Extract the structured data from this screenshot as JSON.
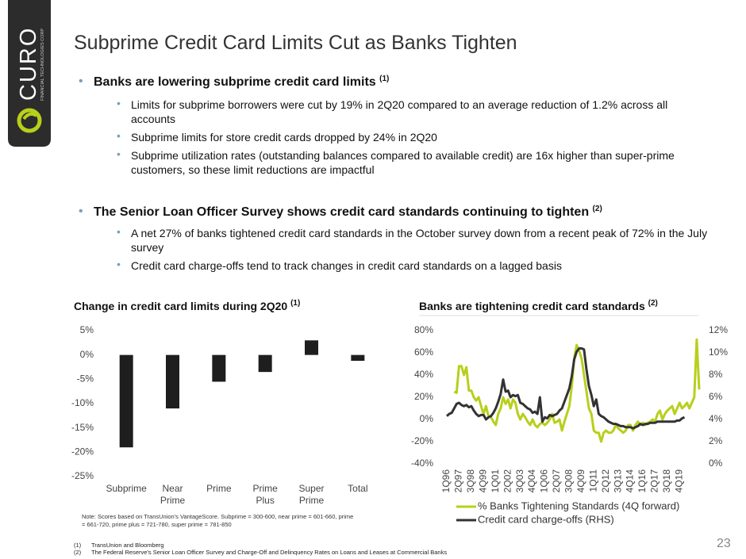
{
  "slide": {
    "logo": {
      "name": "CURO",
      "tagline": "FINANCIAL TECHNOLOGIES CORP"
    },
    "title": "Subprime Credit Card Limits Cut as Banks Tighten",
    "bullets": [
      {
        "text": "Banks are lowering subprime credit card limits",
        "ref": "(1)",
        "sub": [
          "Limits for subprime borrowers were cut by 19% in 2Q20 compared to an average reduction of 1.2% across all accounts",
          "Subprime limits for store credit cards dropped by 24% in 2Q20",
          "Subprime utilization rates (outstanding balances compared to available credit) are 16x higher than super-prime customers, so these limit reductions are impactful"
        ]
      },
      {
        "text": "The Senior Loan Officer Survey shows credit card standards continuing to tighten",
        "ref": "(2)",
        "sub": [
          "A net 27% of banks tightened credit card standards in the October survey down from a recent peak of 72% in the July survey",
          "Credit card charge-offs tend to track changes in credit card standards on a lagged basis"
        ]
      }
    ],
    "note": "Note: Scores based on TransUnion's VantageScore. Subprime = 300-600, near prime = 601-660, prime = 661-720, prime plus = 721-780, super prime = 781-850",
    "footnotes": [
      {
        "mark": "(1)",
        "text": "TransUnion and Bloomberg"
      },
      {
        "mark": "(2)",
        "text": "The Federal Reserve's Senior Loan Officer Survey and Charge-Off and Delinquency Rates on Loans and Leases at Commercial Banks"
      }
    ],
    "page": "23"
  },
  "chart_data": [
    {
      "type": "bar",
      "title": "Change in credit card limits during 2Q20",
      "title_ref": "(1)",
      "categories": [
        "Subprime",
        "Near Prime",
        "Prime",
        "Prime Plus",
        "Super Prime",
        "Total"
      ],
      "values": [
        -19,
        -11,
        -5.5,
        -3.5,
        3,
        -1.2
      ],
      "color": "#1e1e1e",
      "ylim": [
        -25,
        5
      ],
      "yticks": [
        {
          "value": 5,
          "label": "5%"
        },
        {
          "value": 0,
          "label": "0%"
        },
        {
          "value": -5,
          "label": "-5%"
        },
        {
          "value": -10,
          "label": "-10%"
        },
        {
          "value": -15,
          "label": "-15%"
        },
        {
          "value": -20,
          "label": "-20%"
        },
        {
          "value": -25,
          "label": "-25%"
        }
      ],
      "grid": false
    },
    {
      "type": "line",
      "title": "Banks are tightening credit card standards",
      "title_ref": "(2)",
      "categories": [
        "1Q96",
        null,
        null,
        null,
        null,
        "2Q97",
        null,
        null,
        null,
        null,
        "3Q98",
        null,
        null,
        null,
        null,
        "4Q99",
        null,
        null,
        null,
        null,
        "1Q01",
        null,
        null,
        null,
        null,
        "2Q02",
        null,
        null,
        null,
        null,
        "3Q03",
        null,
        null,
        null,
        null,
        "4Q04",
        null,
        null,
        null,
        null,
        "1Q06",
        null,
        null,
        null,
        null,
        "2Q07",
        null,
        null,
        null,
        null,
        "3Q08",
        null,
        null,
        null,
        null,
        "4Q09",
        null,
        null,
        null,
        null,
        "1Q11",
        null,
        null,
        null,
        null,
        "2Q12",
        null,
        null,
        null,
        null,
        "3Q13",
        null,
        null,
        null,
        null,
        "4Q14",
        null,
        null,
        null,
        null,
        "1Q16",
        null,
        null,
        null,
        null,
        "2Q17",
        null,
        null,
        null,
        null,
        "3Q18",
        null,
        null,
        null,
        null,
        "4Q19",
        null,
        null,
        null,
        null,
        null,
        null,
        null,
        null
      ],
      "series": [
        {
          "name": "% Banks Tightening Standards (4Q forward)",
          "color": "#b8cf1c",
          "axis": "y",
          "values": [
            null,
            null,
            null,
            25,
            24,
            48,
            48,
            40,
            47,
            26,
            26,
            20,
            17,
            20,
            12,
            5,
            12,
            3,
            2,
            -2,
            -5,
            5,
            10,
            20,
            14,
            18,
            10,
            18,
            15,
            5,
            0,
            5,
            2,
            -2,
            -5,
            0,
            -5,
            -7,
            -4,
            -3,
            -5,
            -3,
            0,
            5,
            -3,
            -2,
            0,
            -10,
            -2,
            5,
            12,
            30,
            55,
            67,
            62,
            55,
            40,
            25,
            10,
            5,
            -10,
            -12,
            -12,
            -20,
            -12,
            -10,
            -12,
            -12,
            -10,
            -5,
            -8,
            -10,
            -12,
            -10,
            -5,
            -5,
            -10,
            -5,
            -2,
            -5,
            -3,
            -5,
            -3,
            -2,
            0,
            -2,
            5,
            8,
            0,
            5,
            8,
            10,
            12,
            5,
            10,
            15,
            10,
            12,
            15,
            10,
            15,
            20,
            72,
            27
          ]
        },
        {
          "name": "Credit card charge-offs (RHS)",
          "color": "#333333",
          "axis": "y2",
          "values": [
            4.3,
            4.5,
            4.6,
            5.0,
            5.4,
            5.5,
            5.3,
            5.2,
            5.3,
            5.1,
            5.2,
            4.8,
            4.5,
            4.3,
            4.4,
            4.4,
            4.0,
            4.2,
            4.3,
            4.6,
            5.0,
            5.6,
            6.3,
            7.6,
            6.5,
            6.6,
            6.0,
            6.2,
            6.1,
            6.2,
            5.5,
            5.4,
            5.2,
            5.0,
            4.9,
            4.6,
            4.7,
            4.5,
            6.0,
            3.8,
            4.2,
            4.1,
            4.4,
            4.3,
            4.4,
            4.5,
            4.8,
            5.0,
            5.6,
            6.2,
            6.8,
            7.9,
            9.4,
            10.1,
            10.4,
            10.4,
            10.3,
            8.5,
            7.0,
            6.2,
            5.2,
            5.8,
            4.5,
            4.3,
            4.2,
            4.0,
            3.8,
            3.7,
            3.6,
            3.6,
            3.5,
            3.4,
            3.4,
            3.3,
            3.3,
            3.3,
            3.2,
            3.3,
            3.4,
            3.6,
            3.5,
            3.6,
            3.6,
            3.7,
            3.7,
            3.7,
            3.8,
            3.8,
            3.8,
            3.8,
            3.8,
            3.8,
            3.8,
            3.8,
            3.9,
            3.9,
            4.1,
            4.2,
            null,
            null,
            null,
            null,
            null,
            null
          ]
        }
      ],
      "ylim": [
        -40,
        80
      ],
      "yticks": [
        {
          "value": 80,
          "label": "80%"
        },
        {
          "value": 60,
          "label": "60%"
        },
        {
          "value": 40,
          "label": "40%"
        },
        {
          "value": 20,
          "label": "20%"
        },
        {
          "value": 0,
          "label": "0%"
        },
        {
          "value": -20,
          "label": "-20%"
        },
        {
          "value": -40,
          "label": "-40%"
        }
      ],
      "y2lim": [
        0,
        12
      ],
      "y2ticks": [
        {
          "value": 12,
          "label": "12%"
        },
        {
          "value": 10,
          "label": "10%"
        },
        {
          "value": 8,
          "label": "8%"
        },
        {
          "value": 6,
          "label": "6%"
        },
        {
          "value": 4,
          "label": "4%"
        },
        {
          "value": 2,
          "label": "2%"
        },
        {
          "value": 0,
          "label": "0%"
        }
      ],
      "legend": "bottom",
      "grid": false
    }
  ]
}
